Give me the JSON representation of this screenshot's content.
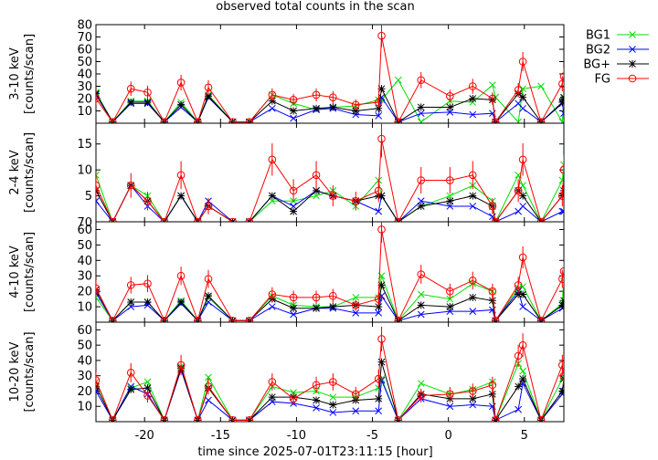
{
  "title": "observed total counts in the scan",
  "xlabel": "time since 2025-07-01T23:11:15 [hour]",
  "legend": [
    {
      "name": "BG1",
      "color": "#00e000",
      "marker": "x"
    },
    {
      "name": "BG2",
      "color": "#0000ff",
      "marker": "x"
    },
    {
      "name": "BG+",
      "color": "#000000",
      "marker": "star"
    },
    {
      "name": "FG",
      "color": "#ff0000",
      "marker": "circle"
    }
  ],
  "chart_data": {
    "type": "line",
    "title": "observed total counts in the scan",
    "xlabel": "time since 2025-07-01T23:11:15 [hour]",
    "xlim": [
      -23.2,
      7.6
    ],
    "xticks": [
      -20,
      -15,
      -10,
      -5,
      0,
      5
    ],
    "legend_position": "top-right, outside plot",
    "x": [
      -23.2,
      -22.1,
      -20.9,
      -19.8,
      -18.7,
      -17.6,
      -16.5,
      -15.8,
      -14.2,
      -13.1,
      -11.6,
      -10.2,
      -8.7,
      -7.6,
      -6.1,
      -4.6,
      -4.4,
      -3.3,
      -1.8,
      0.1,
      1.6,
      2.9,
      3.1,
      4.6,
      4.9,
      6.1,
      7.5,
      7.6
    ],
    "panels": [
      {
        "ylabel": [
          "3-10 keV",
          "[counts/scan]"
        ],
        "ylim": [
          0,
          80
        ],
        "yticks": [
          10,
          20,
          30,
          40,
          50,
          60,
          70,
          80
        ],
        "series": [
          {
            "name": "BG1",
            "values": [
              25,
              1,
              18,
              18,
              1,
              17,
              1,
              23,
              1,
              1,
              23,
              16,
              11,
              13,
              14,
              19,
              19,
              35,
              1,
              18,
              17,
              31,
              21,
              1,
              28,
              30,
              1,
              20
            ]
          },
          {
            "name": "BG2",
            "values": [
              23,
              1,
              16,
              16,
              1,
              13,
              1,
              21,
              1,
              1,
              12,
              4,
              11,
              12,
              7,
              6,
              21,
              1,
              8,
              9,
              7,
              8,
              1,
              16,
              12,
              1,
              16,
              8
            ]
          },
          {
            "name": "BG+",
            "values": [
              24,
              1,
              17,
              17,
              1,
              15,
              1,
              22,
              1,
              1,
              18,
              10,
              12,
              13,
              10,
              12,
              28,
              1,
              13,
              13,
              20,
              19,
              1,
              24,
              21,
              1,
              17,
              21
            ]
          },
          {
            "name": "FG",
            "values": [
              20,
              1,
              28,
              25,
              1,
              33,
              1,
              29,
              1,
              1,
              23,
              19,
              23,
              21,
              15,
              17,
              71,
              1,
              35,
              22,
              30,
              20,
              1,
              27,
              50,
              1,
              32,
              38
            ]
          }
        ]
      },
      {
        "ylabel": [
          "2-4 keV",
          "[counts/scan]"
        ],
        "ylim": [
          0,
          19
        ],
        "yticks": [
          5,
          10,
          15
        ],
        "tick_label_at_bottom": "70",
        "series": [
          {
            "name": "BG1",
            "values": [
              9,
              0,
              7,
              5,
              0,
              5,
              0,
              3,
              0,
              0,
              4,
              4,
              5,
              6,
              3,
              8,
              5,
              0,
              3,
              5,
              7,
              4,
              0,
              9,
              7,
              0,
              8,
              11
            ]
          },
          {
            "name": "BG2",
            "values": [
              4,
              0,
              7,
              3,
              0,
              5,
              0,
              4,
              0,
              0,
              5,
              3,
              6,
              5,
              4,
              2,
              5,
              0,
              4,
              3,
              3,
              1,
              0,
              2,
              3,
              0,
              2,
              2
            ]
          },
          {
            "name": "BG+",
            "values": [
              6,
              0,
              7,
              4,
              0,
              5,
              0,
              3,
              0,
              0,
              5,
              2,
              6,
              5,
              4,
              5,
              5,
              0,
              3,
              4,
              5,
              3,
              0,
              6,
              5,
              0,
              5,
              6
            ]
          },
          {
            "name": "FG",
            "values": [
              7,
              0,
              7,
              4,
              0,
              9,
              0,
              3,
              0,
              0,
              12,
              6,
              9,
              5,
              4,
              6,
              16,
              0,
              8,
              8,
              9,
              3,
              0,
              6,
              12,
              0,
              5,
              10
            ]
          }
        ]
      },
      {
        "ylabel": [
          "4-10 keV",
          "[counts/scan]"
        ],
        "ylim": [
          0,
          65
        ],
        "yticks": [
          10,
          20,
          30,
          40,
          50,
          60
        ],
        "series": [
          {
            "name": "BG1",
            "values": [
              16,
              1,
              13,
              13,
              1,
              14,
              1,
              16,
              1,
              1,
              17,
              11,
              10,
              10,
              16,
              16,
              30,
              1,
              18,
              15,
              25,
              20,
              1,
              22,
              23,
              1,
              12,
              30
            ]
          },
          {
            "name": "BG2",
            "values": [
              19,
              1,
              10,
              11,
              1,
              12,
              1,
              13,
              1,
              1,
              10,
              5,
              9,
              9,
              6,
              6,
              17,
              1,
              5,
              7,
              7,
              8,
              1,
              20,
              10,
              1,
              9,
              10
            ]
          },
          {
            "name": "BG+",
            "values": [
              21,
              1,
              13,
              13,
              1,
              13,
              1,
              17,
              1,
              1,
              15,
              9,
              9,
              10,
              11,
              10,
              24,
              1,
              11,
              10,
              16,
              14,
              1,
              18,
              18,
              1,
              11,
              14
            ]
          },
          {
            "name": "FG",
            "values": [
              22,
              1,
              24,
              25,
              1,
              30,
              1,
              28,
              1,
              1,
              18,
              16,
              16,
              17,
              11,
              15,
              60,
              1,
              31,
              20,
              27,
              20,
              1,
              24,
              42,
              1,
              28,
              33
            ]
          }
        ]
      },
      {
        "ylabel": [
          "10-20 keV",
          "[counts/scan]"
        ],
        "ylim": [
          0,
          65
        ],
        "yticks": [
          10,
          20,
          30,
          40,
          50,
          60
        ],
        "series": [
          {
            "name": "BG1",
            "values": [
              26,
              1,
              22,
              26,
              1,
              36,
              1,
              29,
              1,
              1,
              23,
              19,
              20,
              16,
              16,
              22,
              28,
              1,
              25,
              18,
              21,
              26,
              1,
              38,
              33,
              1,
              28,
              29
            ]
          },
          {
            "name": "BG2",
            "values": [
              20,
              1,
              23,
              18,
              1,
              34,
              1,
              14,
              1,
              1,
              13,
              12,
              9,
              6,
              7,
              7,
              27,
              1,
              15,
              10,
              11,
              10,
              1,
              8,
              25,
              1,
              18,
              20
            ]
          },
          {
            "name": "BG+",
            "values": [
              23,
              1,
              21,
              22,
              1,
              35,
              1,
              22,
              1,
              1,
              16,
              16,
              14,
              11,
              14,
              15,
              39,
              1,
              18,
              15,
              15,
              18,
              1,
              23,
              28,
              1,
              20,
              28
            ]
          },
          {
            "name": "FG",
            "values": [
              27,
              1,
              32,
              17,
              1,
              37,
              1,
              23,
              1,
              1,
              26,
              15,
              24,
              26,
              18,
              28,
              54,
              1,
              17,
              18,
              20,
              24,
              1,
              43,
              50,
              1,
              37,
              30
            ]
          }
        ]
      }
    ]
  }
}
